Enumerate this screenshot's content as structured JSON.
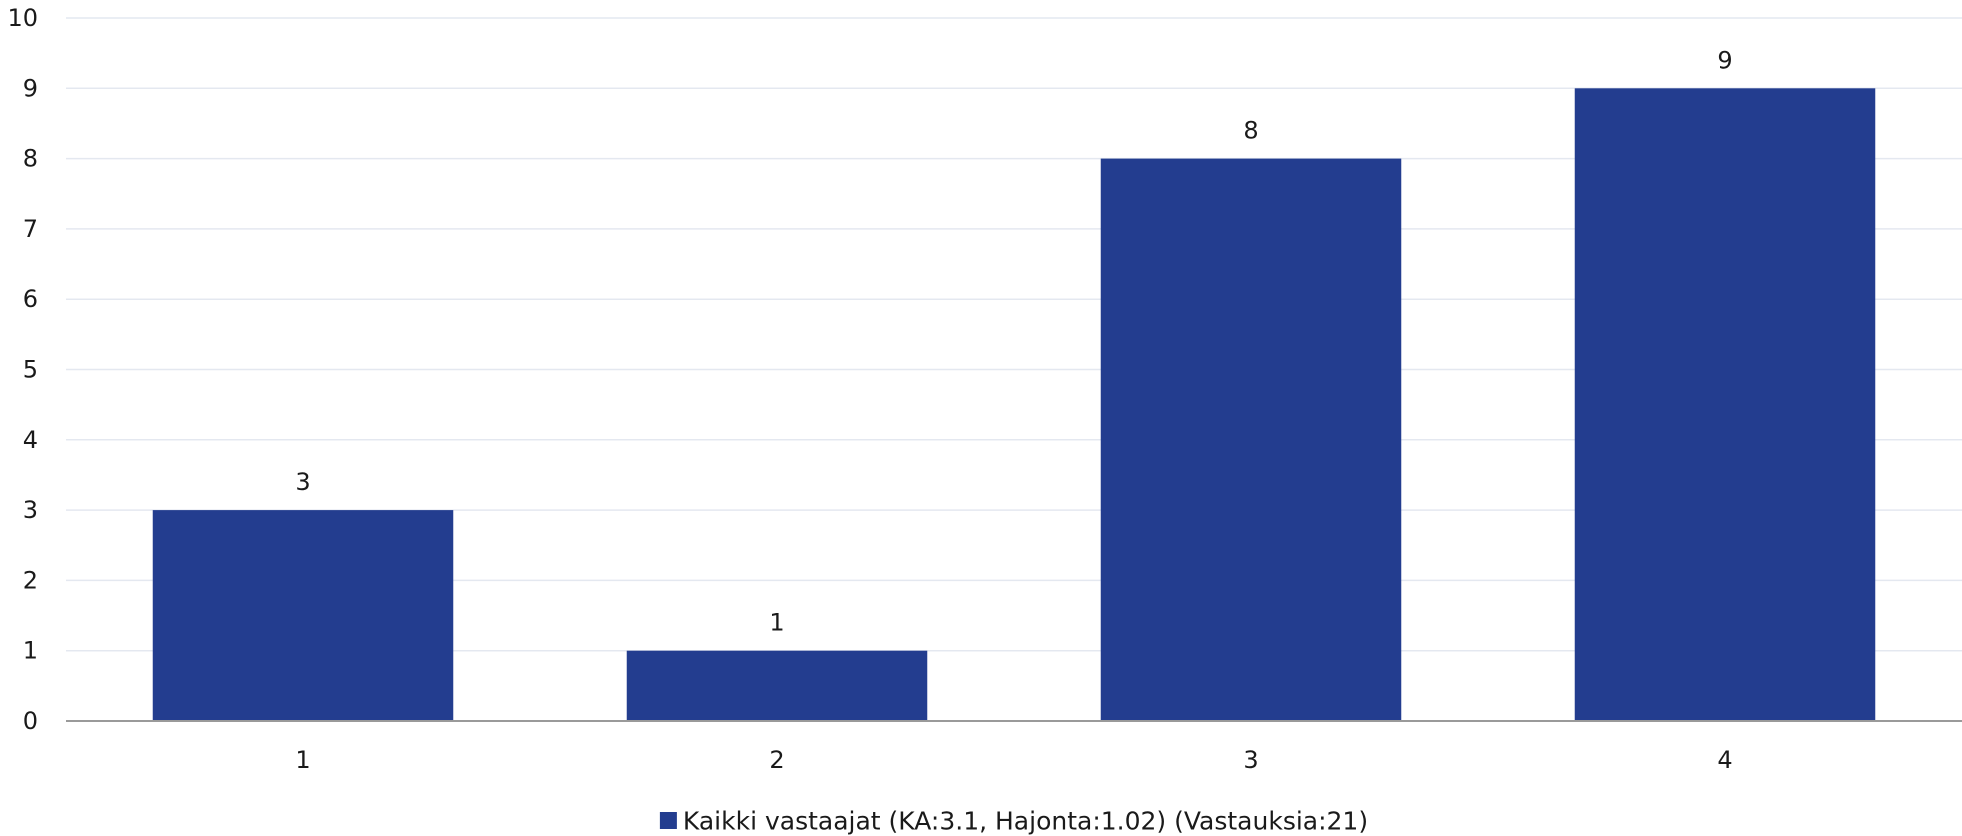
{
  "chart_data": {
    "type": "bar",
    "categories": [
      "1",
      "2",
      "3",
      "4"
    ],
    "series": [
      {
        "name": "Kaikki vastaajat (KA:3.1, Hajonta:1.02) (Vastauksia:21)",
        "values": [
          3,
          1,
          8,
          9
        ],
        "color": "#233d8f"
      }
    ],
    "title": "",
    "xlabel": "",
    "ylabel": "",
    "ylim": [
      0,
      10
    ],
    "yticks": [
      "0",
      "1",
      "2",
      "3",
      "4",
      "5",
      "6",
      "7",
      "8",
      "9",
      "10"
    ],
    "data_labels": [
      "3",
      "1",
      "8",
      "9"
    ],
    "grid": true,
    "legend": "bottom-center"
  }
}
